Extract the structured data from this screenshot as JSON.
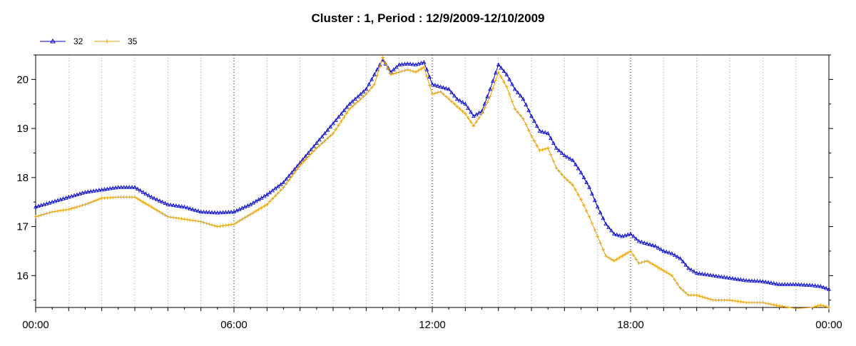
{
  "chart_data": {
    "type": "line",
    "title": "Cluster : 1, Period : 12/9/2009-12/10/2009",
    "xlabel": "",
    "ylabel": "",
    "x_unit": "hours",
    "xlim": [
      0,
      24
    ],
    "ylim": [
      15.35,
      20.5
    ],
    "x_ticks": [
      0,
      6,
      12,
      18,
      24
    ],
    "x_tick_labels": [
      "00:00",
      "06:00",
      "12:00",
      "18:00",
      "00:00"
    ],
    "y_ticks": [
      16,
      17,
      18,
      19,
      20
    ],
    "y_tick_labels": [
      "16",
      "17",
      "18",
      "19",
      "20"
    ],
    "grid": "dotted vertical lines; darker at 6-hour marks",
    "legend_position": "top-left",
    "colors": {
      "32": "#0000cc",
      "35": "#e8a000"
    },
    "x": [
      0,
      0.5,
      1,
      1.5,
      2,
      2.5,
      3,
      3.5,
      4,
      4.5,
      5,
      5.5,
      6,
      6.5,
      7,
      7.5,
      8,
      8.5,
      9,
      9.5,
      10,
      10.25,
      10.5,
      10.75,
      11,
      11.25,
      11.5,
      11.75,
      12,
      12.25,
      12.5,
      12.75,
      13,
      13.25,
      13.5,
      13.75,
      14,
      14.25,
      14.5,
      14.75,
      15,
      15.25,
      15.5,
      15.75,
      16,
      16.25,
      16.5,
      16.75,
      17,
      17.25,
      17.5,
      17.75,
      18,
      18.25,
      18.5,
      18.75,
      19,
      19.25,
      19.5,
      19.75,
      20,
      20.5,
      21,
      21.5,
      22,
      22.5,
      23,
      23.5,
      23.75,
      24
    ],
    "series": [
      {
        "name": "32",
        "marker": "triangle",
        "values": [
          17.4,
          17.5,
          17.6,
          17.7,
          17.75,
          17.8,
          17.8,
          17.6,
          17.45,
          17.4,
          17.3,
          17.28,
          17.3,
          17.45,
          17.65,
          17.9,
          18.3,
          18.7,
          19.1,
          19.5,
          19.8,
          20.1,
          20.4,
          20.15,
          20.3,
          20.32,
          20.3,
          20.35,
          19.9,
          19.85,
          19.8,
          19.6,
          19.5,
          19.25,
          19.35,
          19.8,
          20.3,
          20.1,
          19.8,
          19.6,
          19.25,
          18.95,
          18.9,
          18.6,
          18.45,
          18.35,
          18.1,
          17.8,
          17.4,
          17.05,
          16.85,
          16.8,
          16.85,
          16.7,
          16.65,
          16.6,
          16.5,
          16.45,
          16.35,
          16.15,
          16.05,
          16.0,
          15.95,
          15.9,
          15.88,
          15.82,
          15.82,
          15.8,
          15.78,
          15.72
        ]
      },
      {
        "name": "35",
        "marker": "plus",
        "values": [
          17.2,
          17.3,
          17.35,
          17.45,
          17.58,
          17.6,
          17.6,
          17.4,
          17.2,
          17.15,
          17.1,
          17.0,
          17.05,
          17.25,
          17.45,
          17.8,
          18.25,
          18.6,
          18.9,
          19.4,
          19.7,
          19.9,
          20.45,
          20.1,
          20.15,
          20.2,
          20.15,
          20.25,
          19.7,
          19.75,
          19.6,
          19.45,
          19.3,
          19.05,
          19.3,
          19.65,
          20.15,
          19.85,
          19.4,
          19.2,
          18.85,
          18.55,
          18.6,
          18.2,
          18.0,
          17.85,
          17.55,
          17.2,
          16.8,
          16.4,
          16.3,
          16.4,
          16.5,
          16.25,
          16.3,
          16.2,
          16.1,
          16.0,
          15.75,
          15.6,
          15.6,
          15.5,
          15.5,
          15.45,
          15.45,
          15.38,
          15.33,
          15.35,
          15.4,
          15.35
        ]
      }
    ]
  }
}
